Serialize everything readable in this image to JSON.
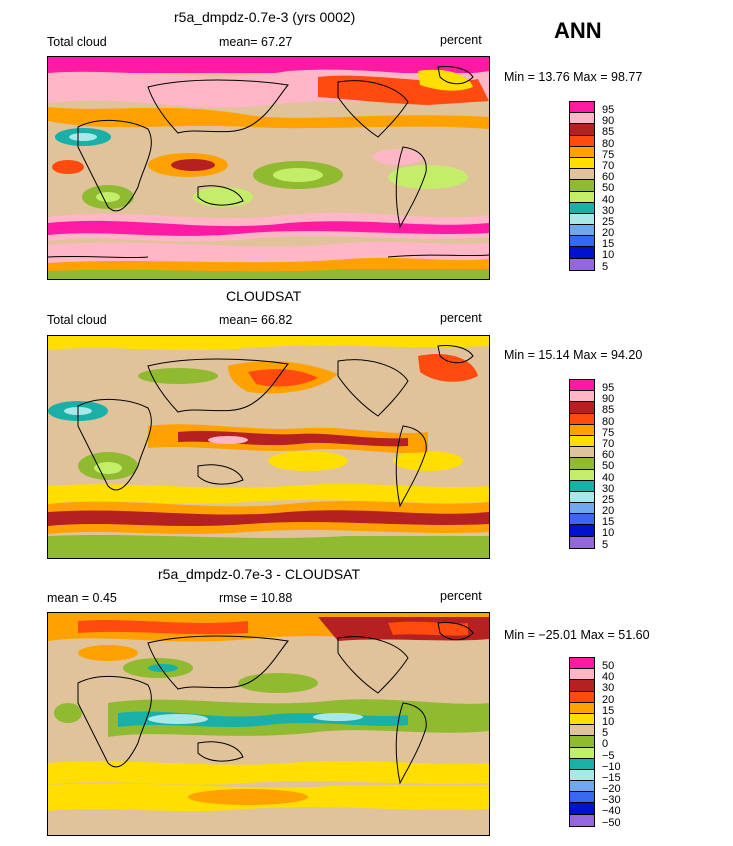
{
  "season": "ANN",
  "panels": [
    {
      "title": "r5a_dmpdz-0.7e-3 (yrs 0002)",
      "left_label": "Total cloud",
      "center_label": "mean=   67.27",
      "units": "percent",
      "minmax": "Min =  13.76 Max =  98.77",
      "legend_labels": [
        "95",
        "90",
        "85",
        "80",
        "75",
        "70",
        "60",
        "50",
        "40",
        "30",
        "25",
        "20",
        "15",
        "10",
        "5"
      ]
    },
    {
      "title": "CLOUDSAT",
      "left_label": "Total cloud",
      "center_label": "mean=   66.82",
      "units": "percent",
      "minmax": "Min =  15.14 Max =  94.20",
      "legend_labels": [
        "95",
        "90",
        "85",
        "80",
        "75",
        "70",
        "60",
        "50",
        "40",
        "30",
        "25",
        "20",
        "15",
        "10",
        "5"
      ]
    },
    {
      "title": "r5a_dmpdz-0.7e-3 - CLOUDSAT",
      "left_label": "mean =   0.45",
      "center_label": "rmse =   10.88",
      "units": "percent",
      "minmax": "Min = −25.01 Max =  51.60",
      "legend_labels": [
        "50",
        "40",
        "30",
        "20",
        "15",
        "10",
        "5",
        "0",
        "−5",
        "−10",
        "−15",
        "−20",
        "−30",
        "−40",
        "−50"
      ]
    }
  ],
  "colors": {
    "scale": [
      "#ff1aa4",
      "#ffb6c6",
      "#b52020",
      "#ff4a10",
      "#ffa100",
      "#ffde00",
      "#e0c39b",
      "#90ba30",
      "#c4ee6a",
      "#1ab0a8",
      "#a8e8e8",
      "#70a8f0",
      "#3868f0",
      "#0012cc",
      "#9468dc"
    ]
  }
}
